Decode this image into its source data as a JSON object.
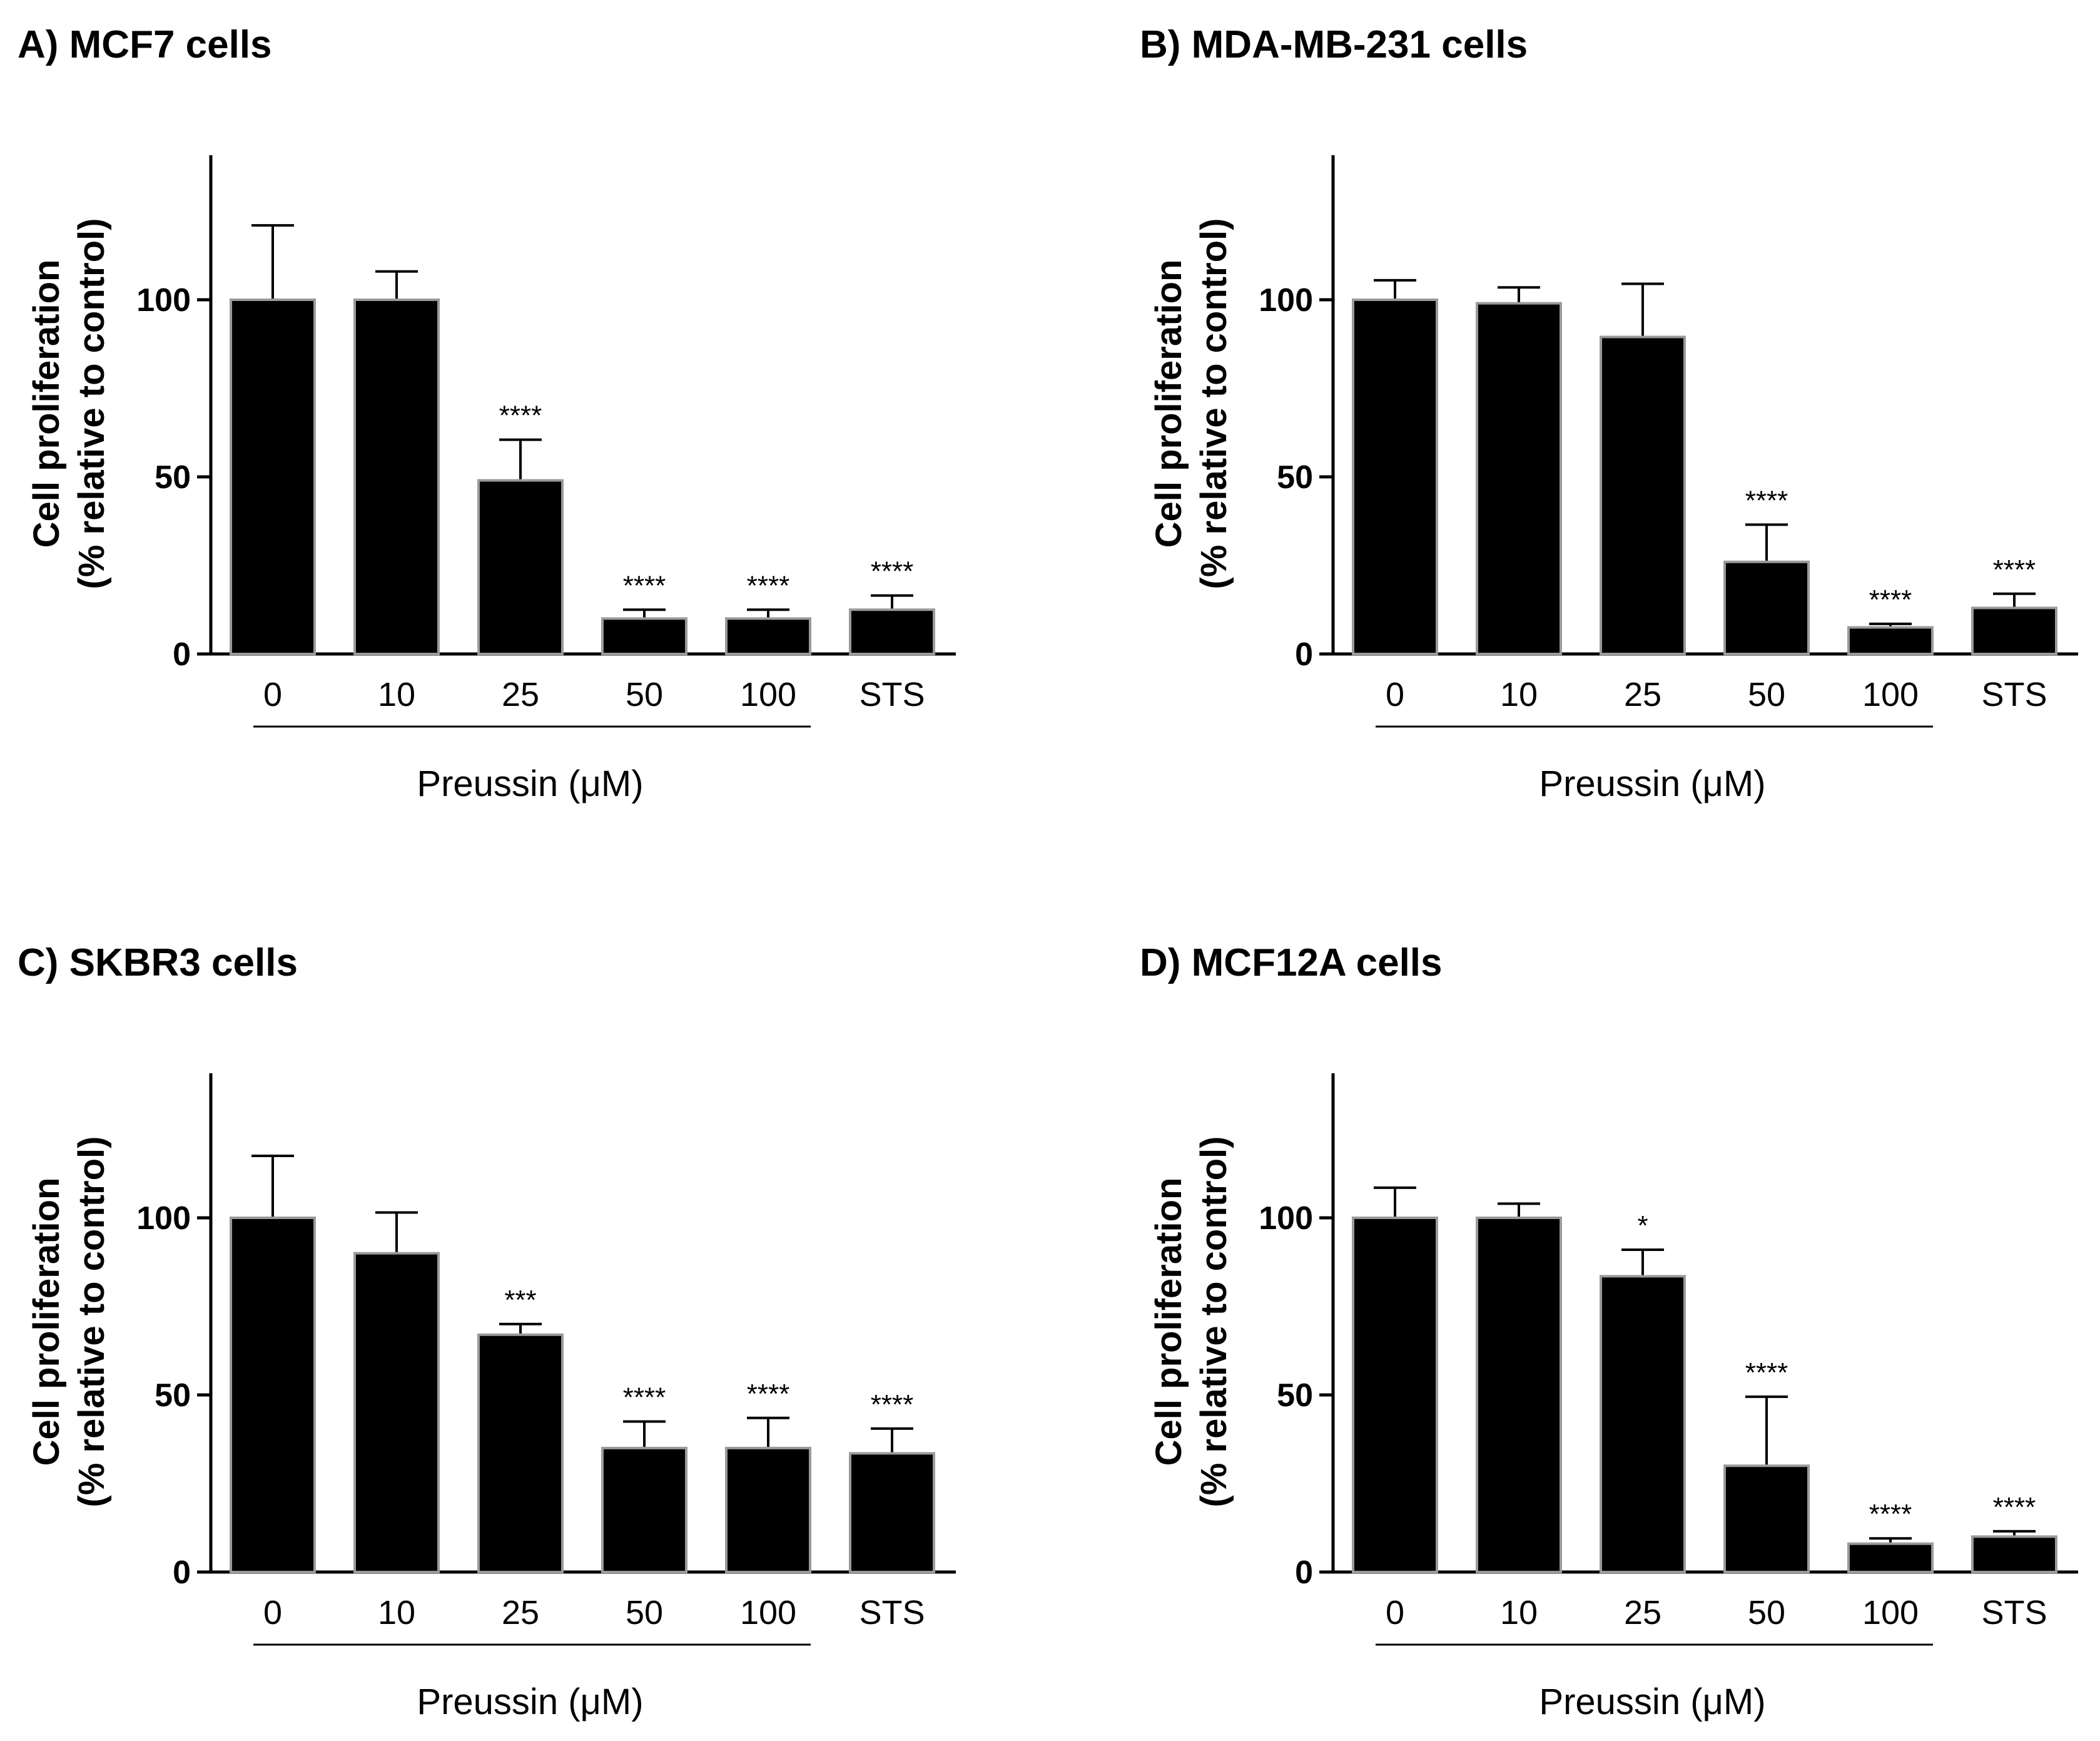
{
  "chart_data": [
    {
      "type": "bar",
      "title": "A) MCF7 cells",
      "ylabel_line1": "Cell proliferation",
      "ylabel_line2": "(% relative to control)",
      "xlabel": "Preussin (μM)",
      "categories": [
        "0",
        "10",
        "25",
        "50",
        "100",
        "STS"
      ],
      "values": [
        100,
        100,
        49,
        10,
        10,
        12.5
      ],
      "errors": [
        21,
        8,
        11.5,
        2.5,
        2.5,
        4
      ],
      "significance": [
        "",
        "",
        "****",
        "****",
        "****",
        "****"
      ],
      "ylim": [
        0,
        140
      ],
      "yticks": [
        0,
        50,
        100
      ],
      "bracket_categories": [
        "0",
        "10",
        "25",
        "50",
        "100"
      ]
    },
    {
      "type": "bar",
      "title": "B) MDA-MB-231 cells",
      "ylabel_line1": "Cell proliferation",
      "ylabel_line2": "(% relative to control)",
      "xlabel": "Preussin (μM)",
      "categories": [
        "0",
        "10",
        "25",
        "50",
        "100",
        "STS"
      ],
      "values": [
        100,
        99,
        89.5,
        26,
        7.5,
        13
      ],
      "errors": [
        5.5,
        4.5,
        15,
        10.5,
        1,
        4
      ],
      "significance": [
        "",
        "",
        "",
        "****",
        "****",
        "****"
      ],
      "ylim": [
        0,
        140
      ],
      "yticks": [
        0,
        50,
        100
      ],
      "bracket_categories": [
        "0",
        "10",
        "25",
        "50",
        "100"
      ]
    },
    {
      "type": "bar",
      "title": "C) SKBR3 cells",
      "ylabel_line1": "Cell proliferation",
      "ylabel_line2": "(% relative to control)",
      "xlabel": "Preussin (μM)",
      "categories": [
        "0",
        "10",
        "25",
        "50",
        "100",
        "STS"
      ],
      "values": [
        100,
        90,
        67,
        35,
        35,
        33.5
      ],
      "errors": [
        17.5,
        11.5,
        3,
        7.5,
        8.5,
        7
      ],
      "significance": [
        "",
        "",
        "***",
        "****",
        "****",
        "****"
      ],
      "ylim": [
        0,
        140
      ],
      "yticks": [
        0,
        50,
        100
      ],
      "bracket_categories": [
        "0",
        "10",
        "25",
        "50",
        "100"
      ]
    },
    {
      "type": "bar",
      "title": "D) MCF12A cells",
      "ylabel_line1": "Cell proliferation",
      "ylabel_line2": "(% relative to control)",
      "xlabel": "Preussin (μM)",
      "categories": [
        "0",
        "10",
        "25",
        "50",
        "100",
        "STS"
      ],
      "values": [
        100,
        100,
        83.5,
        30,
        8,
        10
      ],
      "errors": [
        8.5,
        4,
        7.5,
        19.5,
        1.5,
        1.5
      ],
      "significance": [
        "",
        "",
        "*",
        "****",
        "****",
        "****"
      ],
      "ylim": [
        0,
        140
      ],
      "yticks": [
        0,
        50,
        100
      ],
      "bracket_categories": [
        "0",
        "10",
        "25",
        "50",
        "100"
      ]
    }
  ],
  "colors": {
    "bar_fill": "#000000",
    "bar_edge": "#9a9a9a",
    "axis": "#000000"
  }
}
